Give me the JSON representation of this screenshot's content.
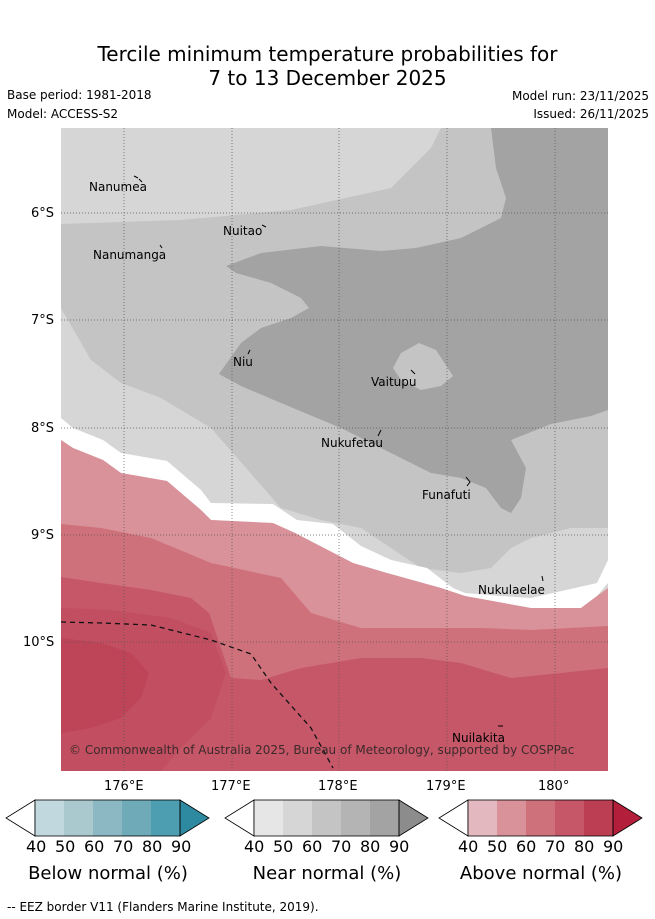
{
  "header": {
    "title_line1": "Tercile minimum temperature probabilities for",
    "title_line2": "7 to 13 December 2025",
    "base_period": "Base period: 1981-2018",
    "model": "Model: ACCESS-S2",
    "model_run": "Model run: 23/11/2025",
    "issued": "Issued: 26/11/2025"
  },
  "map": {
    "latitude_labels": [
      "6°S",
      "7°S",
      "8°S",
      "9°S",
      "10°S"
    ],
    "longitude_labels": [
      "176°E",
      "177°E",
      "178°E",
      "179°E",
      "180°"
    ],
    "places": {
      "nanumea": "Nanumea",
      "nuitao": "Nuitao",
      "nanumanga": "Nanumanga",
      "niu": "Niu",
      "vaitupu": "Vaitupu",
      "nukufetau": "Nukufetau",
      "funafuti": "Funafuti",
      "nukulaelae": "Nukulaelae",
      "nuilakita": "Nuilakita"
    },
    "copyright": "© Commonwealth of Australia 2025, Bureau of Meteorology, supported by COSPPac"
  },
  "colorbars": {
    "ticks": [
      "40",
      "50",
      "60",
      "70",
      "80",
      "90"
    ],
    "below": {
      "title": "Below normal (%)",
      "colors": [
        "#c2d8df",
        "#a9c9cf",
        "#8cb8c4",
        "#6eaab8",
        "#4c9eb0",
        "#2e8aa0"
      ]
    },
    "near": {
      "title": "Near normal (%)",
      "colors": [
        "#e6e6e6",
        "#d6d6d6",
        "#c4c4c4",
        "#b4b4b4",
        "#a3a3a3",
        "#8c8c8c"
      ]
    },
    "above": {
      "title": "Above normal (%)",
      "colors": [
        "#e3b9bf",
        "#d9919a",
        "#cf717b",
        "#c55768",
        "#bb3e52",
        "#b31f3a"
      ]
    }
  },
  "footer": {
    "legend_text": "-- EEZ border V11 (Flanders Marine Institute, 2019)."
  }
}
